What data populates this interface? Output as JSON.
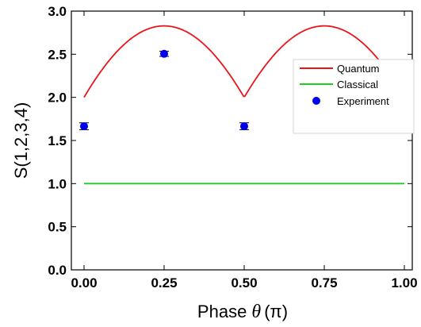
{
  "chart_data": {
    "type": "line",
    "xlabel_prefix": "Phase ",
    "xlabel_symbol": "θ",
    "xlabel_suffix": "(π)",
    "ylabel": "S(1,2,3,4)",
    "xlim": [
      0,
      1
    ],
    "ylim": [
      0,
      3
    ],
    "x_ticks": [
      "0.00",
      "0.25",
      "0.50",
      "0.75",
      "1.00"
    ],
    "y_ticks": [
      "0.0",
      "0.5",
      "1.0",
      "1.5",
      "2.0",
      "2.5",
      "3.0"
    ],
    "grid": false,
    "legend_position": "upper-right",
    "series": [
      {
        "name": "Quantum",
        "kind": "line",
        "color": "#e8161b",
        "formula": "2*sqrt(1+|sin(2*pi*theta)|)",
        "x_range": [
          0,
          0.92
        ]
      },
      {
        "name": "Classical",
        "kind": "line",
        "color": "#22cc22",
        "x": [
          0,
          1
        ],
        "y": [
          1,
          1
        ]
      },
      {
        "name": "Experiment",
        "kind": "scatter",
        "color": "#0000ee",
        "x": [
          0,
          0.25,
          0.5
        ],
        "y": [
          1.665,
          2.505,
          1.665
        ],
        "yerr": [
          0.04,
          0.03,
          0.04
        ]
      }
    ]
  }
}
